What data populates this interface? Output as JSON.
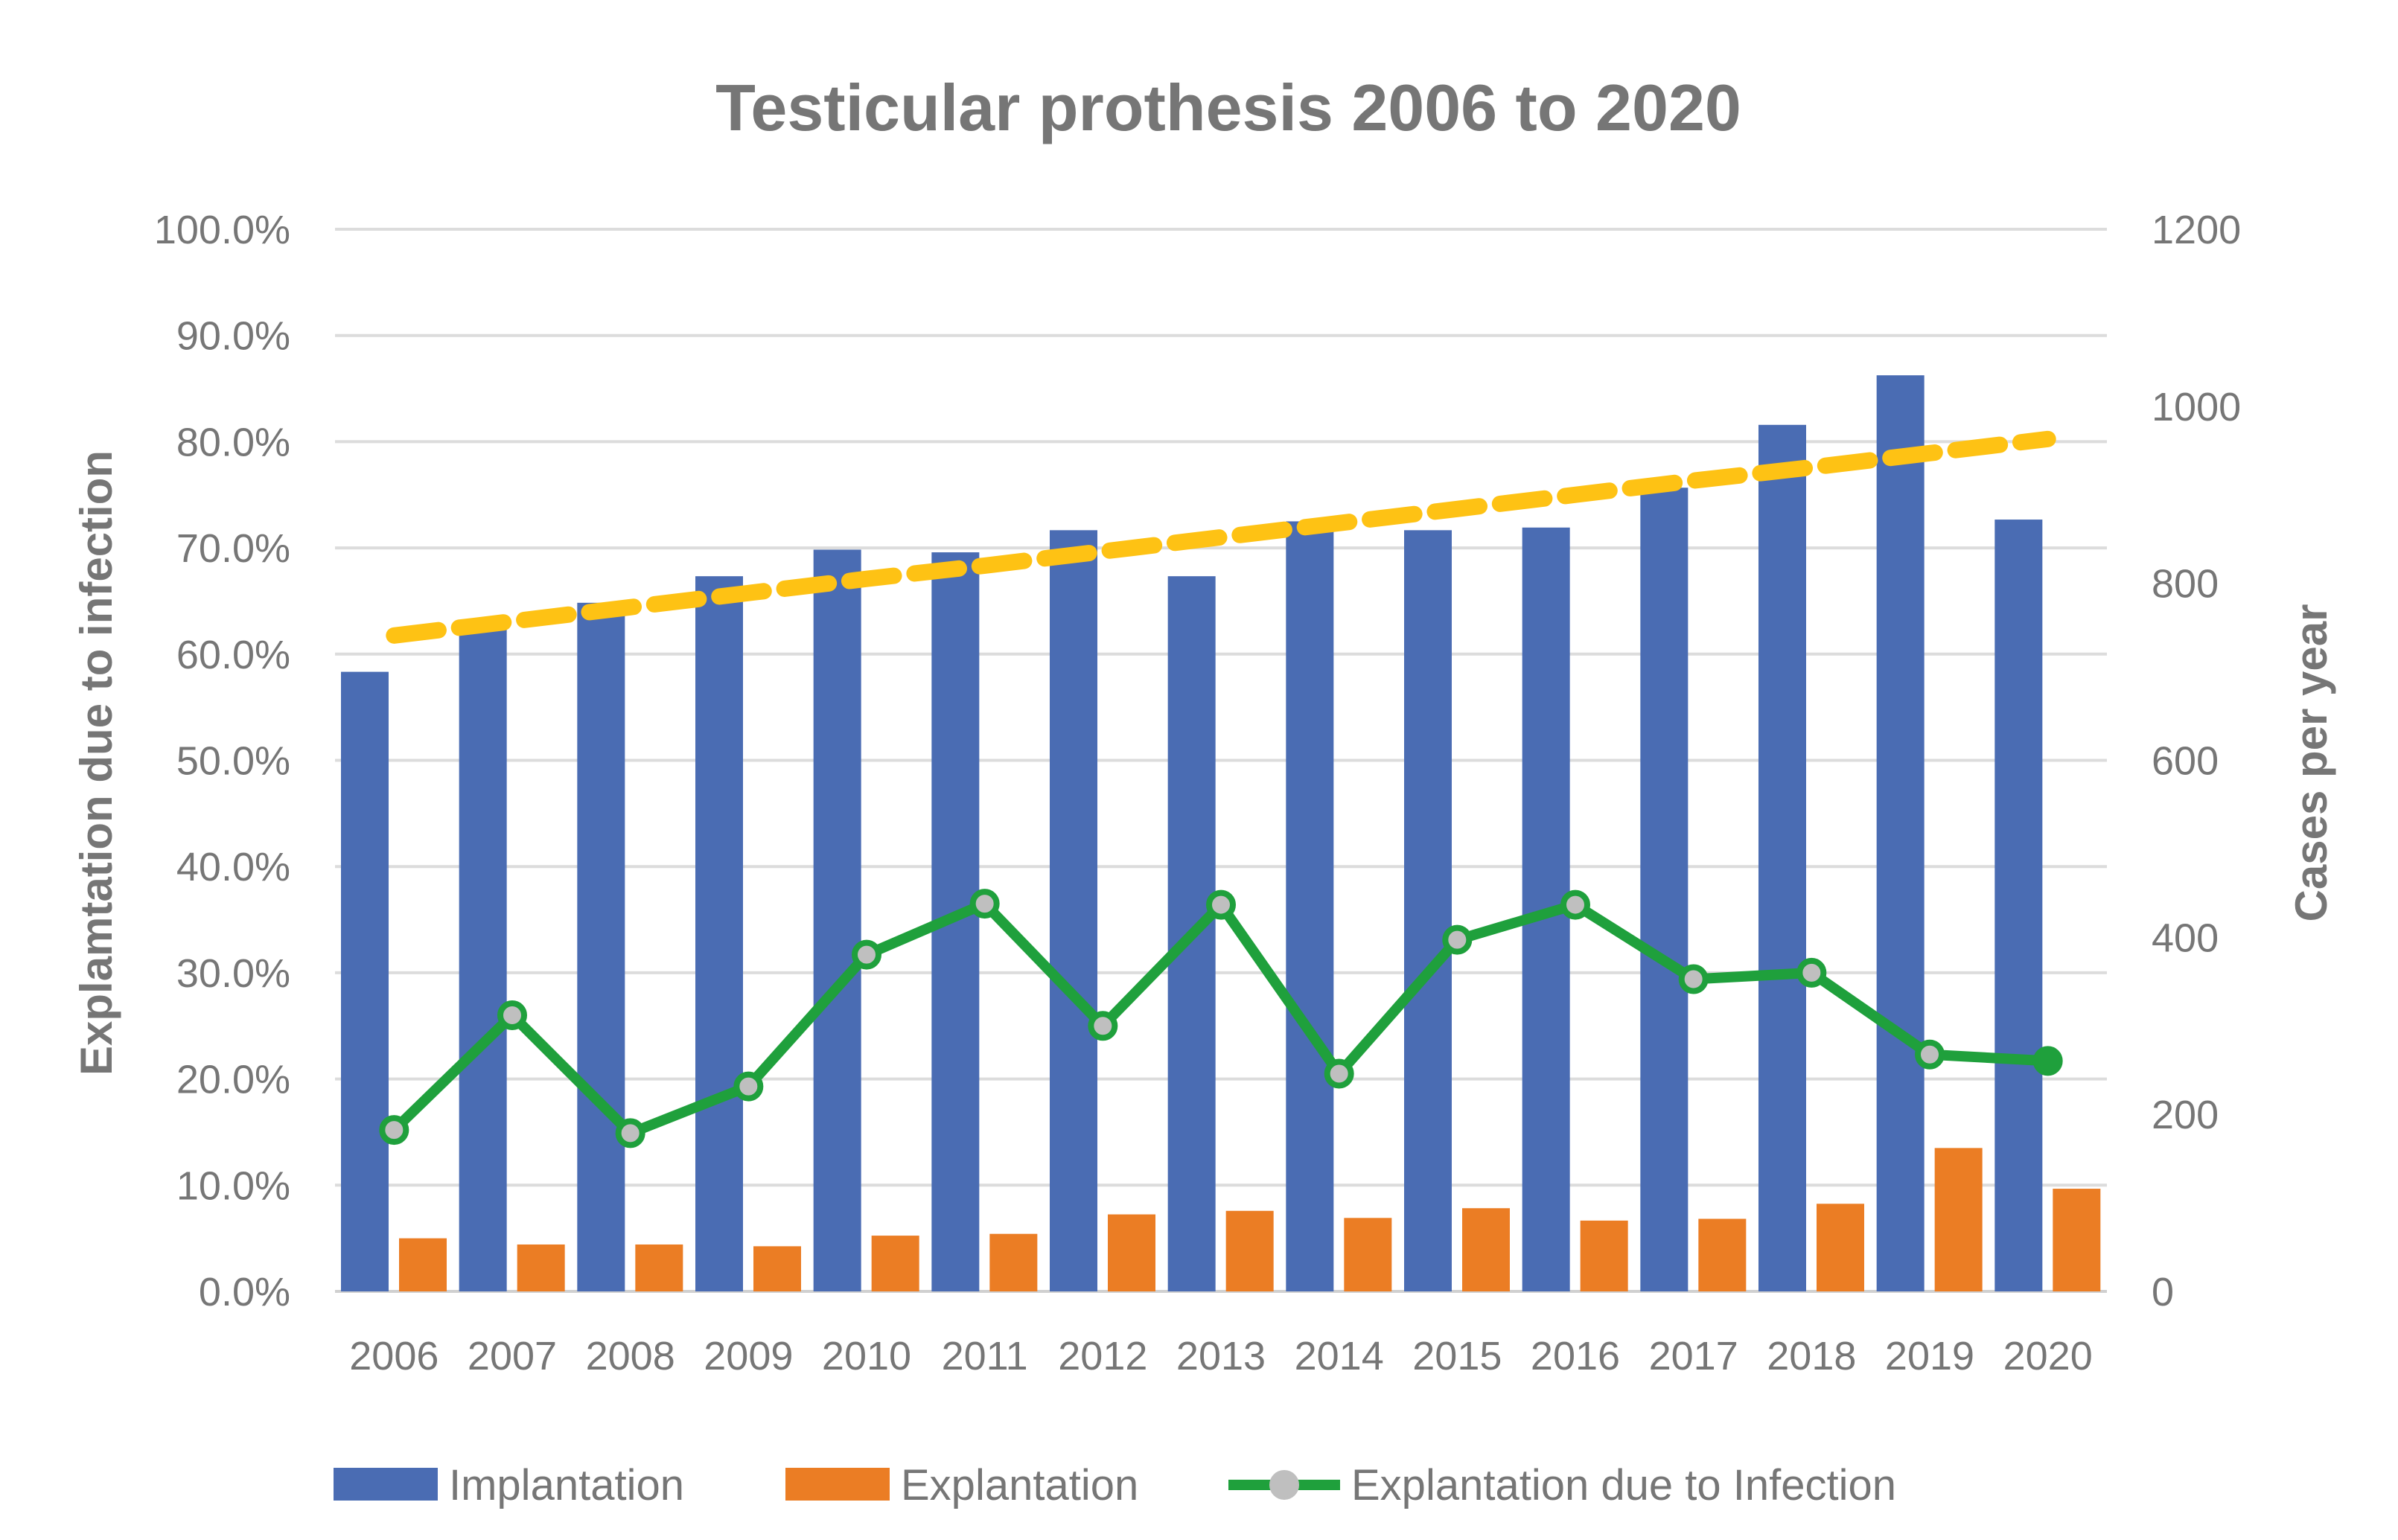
{
  "chart_data": {
    "type": "bar",
    "title": "Testicular prothesis 2006 to 2020",
    "categories": [
      "2006",
      "2007",
      "2008",
      "2009",
      "2010",
      "2011",
      "2012",
      "2013",
      "2014",
      "2015",
      "2016",
      "2017",
      "2018",
      "2019",
      "2020"
    ],
    "y_left": {
      "label": "Explamtation due to infection",
      "range": [
        0,
        100
      ],
      "ticks": [
        "0.0%",
        "10.0%",
        "20.0%",
        "30.0%",
        "40.0%",
        "50.0%",
        "60.0%",
        "70.0%",
        "80.0%",
        "90.0%",
        "100.0%"
      ]
    },
    "y_right": {
      "label": "Cases per year",
      "range": [
        0,
        1200
      ],
      "ticks": [
        "0",
        "200",
        "400",
        "600",
        "800",
        "1000",
        "1200"
      ]
    },
    "grid": true,
    "legend_position": "bottom",
    "series": [
      {
        "name": "Implantation",
        "type": "bar",
        "axis": "right",
        "color": "#4a6cb3",
        "values": [
          700,
          757,
          778,
          808,
          838,
          835,
          860,
          808,
          870,
          860,
          863,
          908,
          979,
          1035,
          872
        ]
      },
      {
        "name": "Explantation",
        "type": "bar",
        "axis": "right",
        "color": "#eb7d24",
        "values": [
          60,
          53,
          53,
          51,
          63,
          65,
          87,
          91,
          83,
          94,
          80,
          82,
          99,
          162,
          116
        ]
      },
      {
        "name": "Explantation due to Infection",
        "type": "line",
        "axis": "left",
        "color": "#1fa03c",
        "marker_color": "#bfbfbf",
        "values": [
          15.2,
          26.0,
          14.9,
          19.3,
          31.7,
          36.5,
          25.0,
          36.4,
          20.5,
          33.1,
          36.4,
          29.4,
          30.0,
          22.3,
          21.7
        ]
      },
      {
        "type": "trend",
        "axis": "right",
        "color": "#fec214",
        "values": [
          741,
          757,
          773,
          789,
          805,
          820,
          836,
          852,
          868,
          884,
          900,
          916,
          931,
          947,
          963
        ]
      }
    ]
  }
}
